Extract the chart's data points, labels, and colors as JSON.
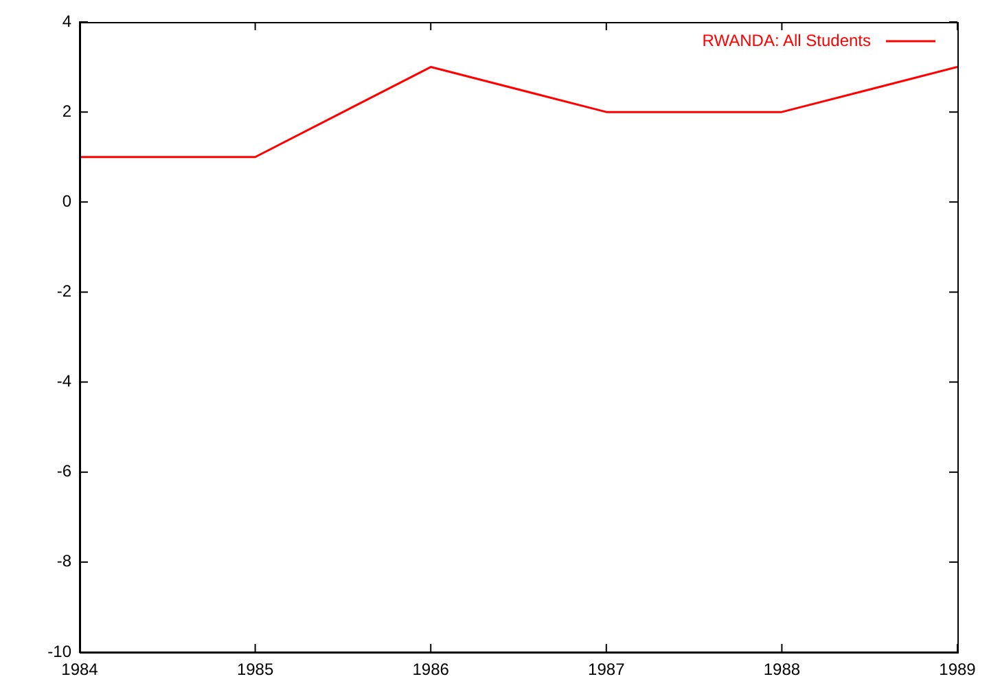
{
  "chart_data": {
    "type": "line",
    "x": [
      1984,
      1985,
      1986,
      1987,
      1988,
      1989
    ],
    "series": [
      {
        "name": "RWANDA: All Students",
        "color": "#ff0000",
        "values": [
          1,
          1,
          3,
          2,
          2,
          3
        ]
      }
    ],
    "xlim": [
      1984,
      1989
    ],
    "xticks": [
      1984,
      1985,
      1986,
      1987,
      1988,
      1989
    ],
    "ylim": [
      -10,
      4
    ],
    "yticks": [
      -10,
      -8,
      -6,
      -4,
      -2,
      0,
      2,
      4
    ],
    "grid": false,
    "legend": "top right",
    "marker": "none",
    "line_style": "solid"
  }
}
